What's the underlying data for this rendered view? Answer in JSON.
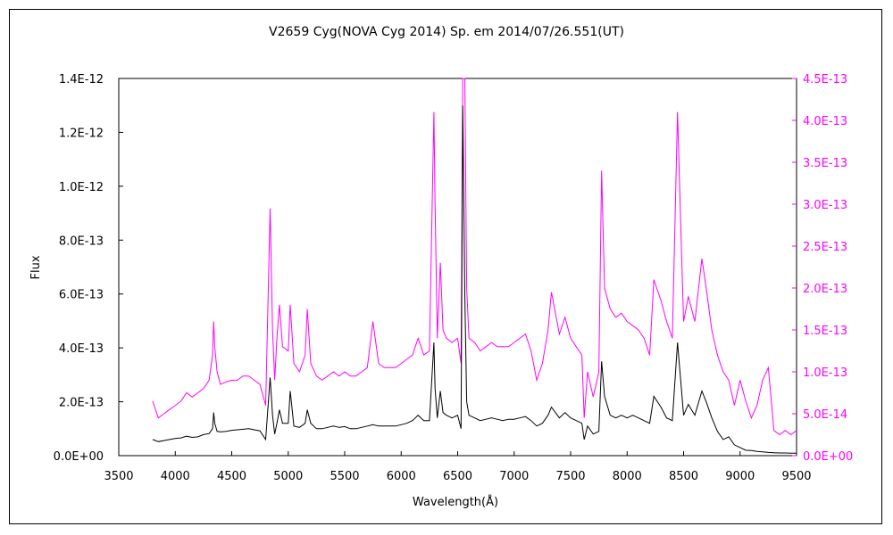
{
  "chart_data": {
    "type": "line",
    "title": "V2659 Cyg(NOVA Cyg 2014)    Sp. em     2014/07/26.551(UT)",
    "xlabel": "Wavelength(Å)",
    "ylabel": "Flux",
    "xlim": [
      3500,
      9500
    ],
    "ylim": [
      0,
      1.4e-12
    ],
    "y2lim": [
      0,
      4.5e-13
    ],
    "x_ticks": [
      "3500",
      "4000",
      "4500",
      "5000",
      "5500",
      "6000",
      "6500",
      "7000",
      "7500",
      "8000",
      "8500",
      "9000",
      "9500"
    ],
    "y_ticks": [
      "0.0E+00",
      "2.0E-13",
      "4.0E-13",
      "6.0E-13",
      "8.0E-13",
      "1.0E-12",
      "1.2E-12",
      "1.4E-12"
    ],
    "y2_ticks": [
      "0.0E+00",
      "5.0E-14",
      "1.0E-13",
      "1.5E-13",
      "2.0E-13",
      "2.5E-13",
      "3.0E-13",
      "3.5E-13",
      "4.0E-13",
      "4.5E-13"
    ],
    "colors": {
      "left_series": "#000000",
      "right_series": "#ff00ff"
    },
    "series": [
      {
        "axis": "left",
        "x": [
          3800,
          3850,
          3900,
          3950,
          4000,
          4050,
          4100,
          4150,
          4200,
          4250,
          4300,
          4330,
          4340,
          4350,
          4370,
          4400,
          4450,
          4500,
          4550,
          4600,
          4650,
          4700,
          4750,
          4800,
          4840,
          4861,
          4880,
          4900,
          4922,
          4950,
          5000,
          5018,
          5050,
          5100,
          5150,
          5169,
          5200,
          5250,
          5300,
          5350,
          5400,
          5450,
          5500,
          5550,
          5600,
          5650,
          5700,
          5750,
          5800,
          5850,
          5900,
          5950,
          6000,
          6050,
          6100,
          6150,
          6200,
          6250,
          6290,
          6300,
          6320,
          6347,
          6370,
          6400,
          6450,
          6500,
          6530,
          6545,
          6563,
          6580,
          6600,
          6650,
          6700,
          6750,
          6800,
          6850,
          6900,
          6950,
          7000,
          7050,
          7100,
          7150,
          7200,
          7250,
          7300,
          7330,
          7400,
          7450,
          7500,
          7550,
          7600,
          7620,
          7650,
          7700,
          7750,
          7774,
          7800,
          7850,
          7900,
          7950,
          8000,
          8050,
          8100,
          8150,
          8200,
          8237,
          8300,
          8350,
          8400,
          8446,
          8480,
          8500,
          8542,
          8600,
          8662,
          8700,
          8750,
          8800,
          8850,
          8900,
          8950,
          9000,
          9050,
          9100,
          9150,
          9200,
          9250,
          9300,
          9350,
          9400,
          9450,
          9500
        ],
        "y": [
          6e-14,
          5.2e-14,
          5.6e-14,
          6e-14,
          6.4e-14,
          6.6e-14,
          7.2e-14,
          6.8e-14,
          7e-14,
          7.8e-14,
          8.2e-14,
          1e-13,
          1.6e-13,
          1.2e-13,
          9e-14,
          8.8e-14,
          9e-14,
          9.4e-14,
          9.6e-14,
          9.8e-14,
          1e-13,
          9.6e-14,
          9.2e-14,
          6e-14,
          2.9e-13,
          1.5e-13,
          8e-14,
          1.2e-13,
          1.7e-13,
          1.2e-13,
          1.2e-13,
          2.4e-13,
          1.1e-13,
          1.05e-13,
          1.2e-13,
          1.7e-13,
          1.2e-13,
          1e-13,
          1e-13,
          1.05e-13,
          1.1e-13,
          1.05e-13,
          1.08e-13,
          1e-13,
          1e-13,
          1.05e-13,
          1.1e-13,
          1.15e-13,
          1.1e-13,
          1.1e-13,
          1.1e-13,
          1.1e-13,
          1.15e-13,
          1.2e-13,
          1.3e-13,
          1.5e-13,
          1.3e-13,
          1.3e-13,
          4.2e-13,
          2.5e-13,
          1.4e-13,
          2.4e-13,
          1.6e-13,
          1.5e-13,
          1.4e-13,
          1.5e-13,
          1e-13,
          1.3e-12,
          6e-13,
          2e-13,
          1.5e-13,
          1.4e-13,
          1.3e-13,
          1.35e-13,
          1.4e-13,
          1.35e-13,
          1.3e-13,
          1.35e-13,
          1.35e-13,
          1.4e-13,
          1.45e-13,
          1.3e-13,
          1.1e-13,
          1.2e-13,
          1.5e-13,
          1.8e-13,
          1.4e-13,
          1.6e-13,
          1.4e-13,
          1.3e-13,
          1.2e-13,
          6e-14,
          1.1e-13,
          8e-14,
          9e-14,
          3.5e-13,
          2.2e-13,
          1.5e-13,
          1.4e-13,
          1.5e-13,
          1.4e-13,
          1.5e-13,
          1.4e-13,
          1.3e-13,
          1.2e-13,
          2.2e-13,
          1.8e-13,
          1.4e-13,
          1.3e-13,
          4.2e-13,
          2.5e-13,
          1.5e-13,
          1.9e-13,
          1.5e-13,
          2.4e-13,
          2e-13,
          1.4e-13,
          9e-14,
          6e-14,
          7e-14,
          4e-14,
          3e-14,
          2e-14,
          1.9e-14,
          1.6e-14,
          1.4e-14,
          1.2e-14,
          1.1e-14,
          1e-14,
          1e-14,
          9e-15,
          9e-15
        ]
      },
      {
        "axis": "right",
        "x": [
          3800,
          3850,
          3900,
          3950,
          4000,
          4050,
          4100,
          4150,
          4200,
          4250,
          4300,
          4330,
          4340,
          4350,
          4370,
          4400,
          4450,
          4500,
          4550,
          4600,
          4650,
          4700,
          4750,
          4800,
          4840,
          4861,
          4880,
          4900,
          4922,
          4950,
          5000,
          5018,
          5050,
          5100,
          5150,
          5169,
          5200,
          5250,
          5300,
          5350,
          5400,
          5450,
          5500,
          5550,
          5600,
          5650,
          5700,
          5750,
          5800,
          5850,
          5900,
          5950,
          6000,
          6050,
          6100,
          6150,
          6200,
          6250,
          6290,
          6300,
          6320,
          6347,
          6370,
          6400,
          6450,
          6500,
          6530,
          6545,
          6563,
          6580,
          6600,
          6650,
          6700,
          6750,
          6800,
          6850,
          6900,
          6950,
          7000,
          7050,
          7100,
          7150,
          7200,
          7250,
          7300,
          7330,
          7400,
          7450,
          7500,
          7550,
          7600,
          7620,
          7650,
          7700,
          7750,
          7774,
          7800,
          7850,
          7900,
          7950,
          8000,
          8050,
          8100,
          8150,
          8200,
          8237,
          8300,
          8350,
          8400,
          8446,
          8480,
          8500,
          8542,
          8600,
          8662,
          8700,
          8750,
          8800,
          8850,
          8900,
          8950,
          9000,
          9050,
          9100,
          9150,
          9200,
          9250,
          9300,
          9350,
          9400,
          9450,
          9500
        ],
        "y": [
          6.5e-14,
          4.5e-14,
          5e-14,
          5.5e-14,
          6e-14,
          6.5e-14,
          7.5e-14,
          7e-14,
          7.5e-14,
          8e-14,
          9e-14,
          1.2e-13,
          1.6e-13,
          1.3e-13,
          1e-13,
          8.5e-14,
          8.8e-14,
          9e-14,
          9e-14,
          9.5e-14,
          9.5e-14,
          9e-14,
          8.5e-14,
          6e-14,
          2.95e-13,
          1.5e-13,
          9e-14,
          1.4e-13,
          1.8e-13,
          1.3e-13,
          1.25e-13,
          1.8e-13,
          1.1e-13,
          1e-13,
          1.2e-13,
          1.75e-13,
          1.1e-13,
          9.5e-14,
          9e-14,
          9.5e-14,
          1e-13,
          9.5e-14,
          1e-13,
          9.5e-14,
          9.5e-14,
          1e-13,
          1.05e-13,
          1.6e-13,
          1.1e-13,
          1.05e-13,
          1.05e-13,
          1.05e-13,
          1.1e-13,
          1.15e-13,
          1.2e-13,
          1.4e-13,
          1.2e-13,
          1.25e-13,
          4.1e-13,
          3e-13,
          1.4e-13,
          2.3e-13,
          1.5e-13,
          1.4e-13,
          1.35e-13,
          1.4e-13,
          1.1e-13,
          4.5e-13,
          4.5e-13,
          2e-13,
          1.4e-13,
          1.35e-13,
          1.25e-13,
          1.3e-13,
          1.35e-13,
          1.3e-13,
          1.3e-13,
          1.3e-13,
          1.35e-13,
          1.4e-13,
          1.45e-13,
          1.25e-13,
          9e-14,
          1.1e-13,
          1.5e-13,
          1.95e-13,
          1.45e-13,
          1.65e-13,
          1.4e-13,
          1.3e-13,
          1.2e-13,
          4.5e-14,
          1e-13,
          7e-14,
          1e-13,
          3.4e-13,
          2e-13,
          1.75e-13,
          1.65e-13,
          1.7e-13,
          1.6e-13,
          1.55e-13,
          1.5e-13,
          1.4e-13,
          1.2e-13,
          2.1e-13,
          1.85e-13,
          1.6e-13,
          1.4e-13,
          4.1e-13,
          2.5e-13,
          1.6e-13,
          1.9e-13,
          1.6e-13,
          2.35e-13,
          2e-13,
          1.5e-13,
          1.2e-13,
          1e-13,
          9e-14,
          6e-14,
          9e-14,
          6.5e-14,
          4.5e-14,
          6e-14,
          9e-14,
          1.05e-13,
          3e-14,
          2.5e-14,
          3e-14,
          2.5e-14,
          3e-14
        ]
      }
    ]
  }
}
